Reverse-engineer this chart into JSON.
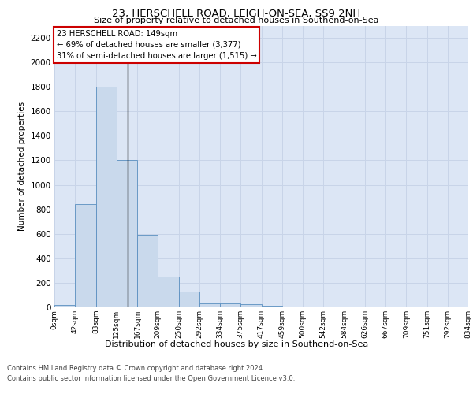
{
  "title1": "23, HERSCHELL ROAD, LEIGH-ON-SEA, SS9 2NH",
  "title2": "Size of property relative to detached houses in Southend-on-Sea",
  "xlabel": "Distribution of detached houses by size in Southend-on-Sea",
  "ylabel": "Number of detached properties",
  "annotation_line1": "23 HERSCHELL ROAD: 149sqm",
  "annotation_line2": "← 69% of detached houses are smaller (3,377)",
  "annotation_line3": "31% of semi-detached houses are larger (1,515) →",
  "footer1": "Contains HM Land Registry data © Crown copyright and database right 2024.",
  "footer2": "Contains public sector information licensed under the Open Government Licence v3.0.",
  "bar_values": [
    20,
    845,
    1800,
    1200,
    590,
    250,
    130,
    35,
    35,
    25,
    10,
    0,
    0,
    0,
    0,
    0,
    0,
    0,
    0,
    0
  ],
  "bar_labels": [
    "0sqm",
    "42sqm",
    "83sqm",
    "125sqm",
    "167sqm",
    "209sqm",
    "250sqm",
    "292sqm",
    "334sqm",
    "375sqm",
    "417sqm",
    "459sqm",
    "500sqm",
    "542sqm",
    "584sqm",
    "626sqm",
    "667sqm",
    "709sqm",
    "751sqm",
    "792sqm",
    "834sqm"
  ],
  "bar_color": "#c9d9ec",
  "bar_edge_color": "#5a8fc0",
  "ylim": [
    0,
    2300
  ],
  "yticks": [
    0,
    200,
    400,
    600,
    800,
    1000,
    1200,
    1400,
    1600,
    1800,
    2000,
    2200
  ],
  "annotation_box_color": "#ffffff",
  "annotation_box_edge_color": "#cc0000",
  "grid_color": "#c8d4e8",
  "background_color": "#dce6f5",
  "bin_size": 42,
  "property_sqm": 149
}
